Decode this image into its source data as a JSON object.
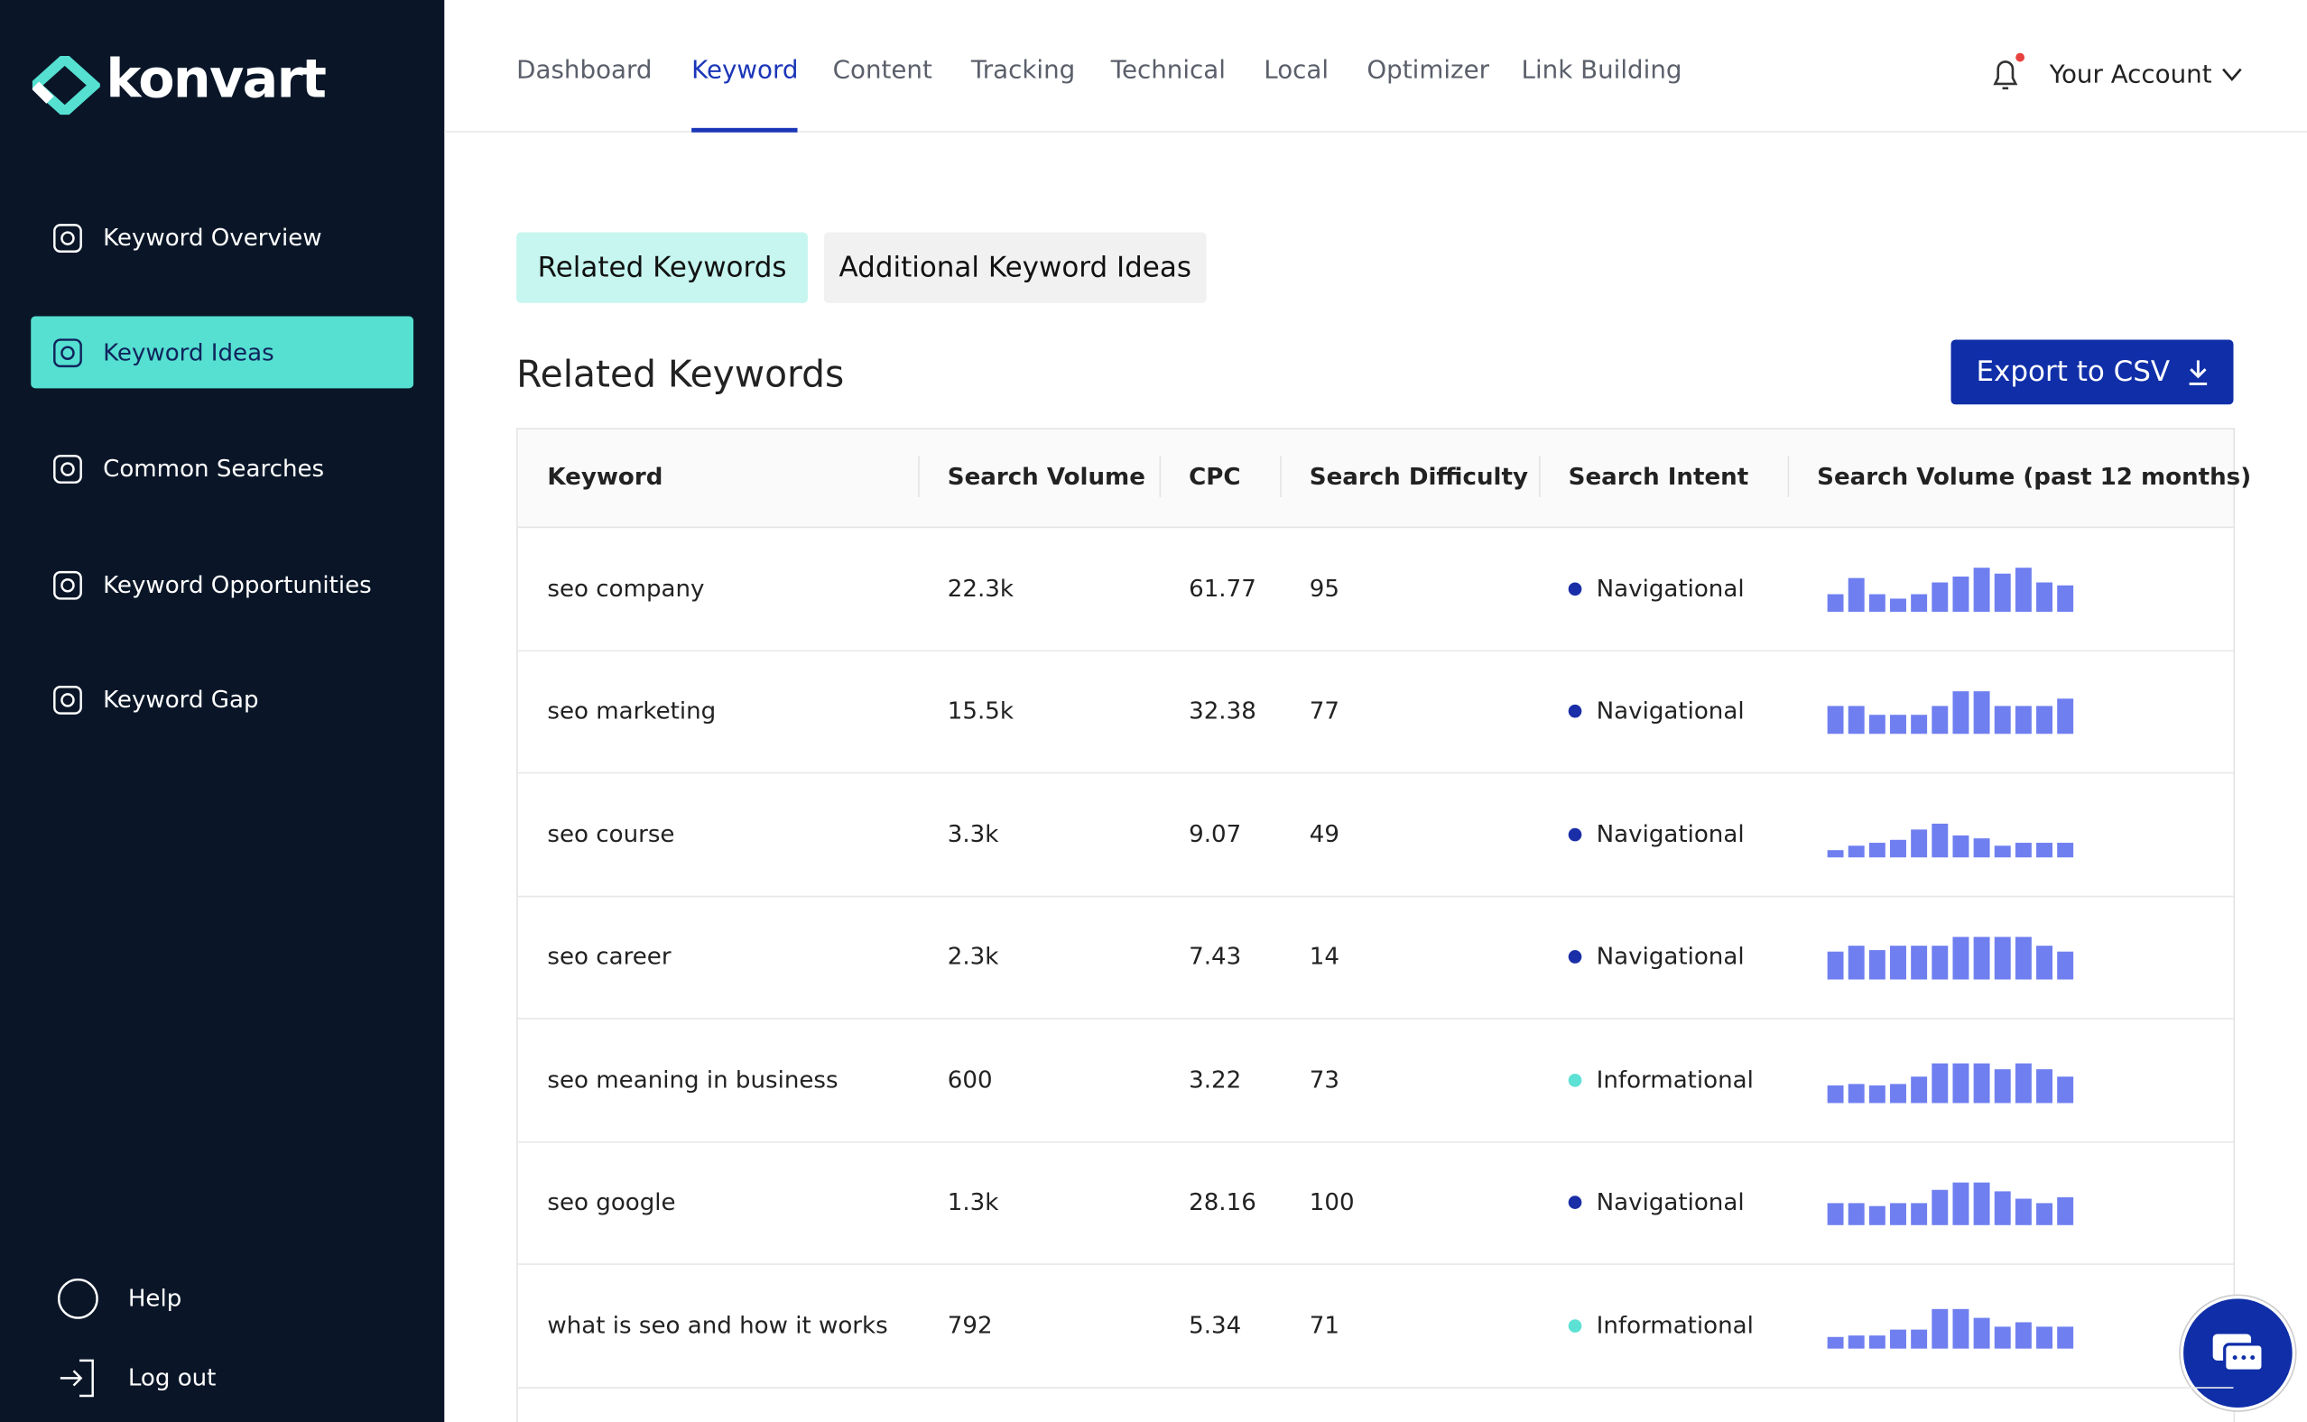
{
  "brand": "konvart",
  "nav": {
    "items": [
      "Dashboard",
      "Keyword",
      "Content",
      "Tracking",
      "Technical",
      "Local",
      "Optimizer",
      "Link Building"
    ],
    "active": 1
  },
  "account": "Your Account",
  "sidebar": {
    "items": [
      "Keyword Overview",
      "Keyword Ideas",
      "Common Searches",
      "Keyword Opportunities",
      "Keyword Gap"
    ],
    "active": 1,
    "footer": [
      "Help",
      "Log out"
    ]
  },
  "tabs": {
    "items": [
      "Related Keywords",
      "Additional Keyword Ideas"
    ],
    "active": 0
  },
  "heading": "Related Keywords",
  "export_button": "Export to CSV",
  "table": {
    "columns": [
      "Keyword",
      "Search Volume",
      "CPC",
      "Search Difficulty",
      "Search Intent",
      "Search Volume (past 12 months)"
    ],
    "rows": [
      {
        "keyword": "seo company",
        "volume": "22.3k",
        "cpc": "61.77",
        "difficulty": "95",
        "intent": "Navigational",
        "intent_color": "#1a2ea8",
        "trend": [
          12,
          23,
          12,
          9,
          12,
          20,
          24,
          30,
          26,
          30,
          20,
          18
        ]
      },
      {
        "keyword": "seo marketing",
        "volume": "15.5k",
        "cpc": "32.38",
        "difficulty": "77",
        "intent": "Navigational",
        "intent_color": "#1a2ea8",
        "trend": [
          19,
          19,
          13,
          13,
          13,
          19,
          29,
          29,
          19,
          19,
          19,
          24
        ]
      },
      {
        "keyword": "seo course",
        "volume": "3.3k",
        "cpc": "9.07",
        "difficulty": "49",
        "intent": "Navigational",
        "intent_color": "#1a2ea8",
        "trend": [
          5,
          8,
          10,
          12,
          19,
          23,
          15,
          13,
          8,
          10,
          10,
          10
        ]
      },
      {
        "keyword": "seo career",
        "volume": "2.3k",
        "cpc": "7.43",
        "difficulty": "14",
        "intent": "Navigational",
        "intent_color": "#1a2ea8",
        "trend": [
          19,
          23,
          20,
          23,
          23,
          23,
          29,
          29,
          29,
          29,
          23,
          19
        ]
      },
      {
        "keyword": "seo meaning in business",
        "volume": "600",
        "cpc": "3.22",
        "difficulty": "73",
        "intent": "Informational",
        "intent_color": "#5ce1d4",
        "trend": [
          12,
          13,
          12,
          13,
          18,
          27,
          27,
          27,
          23,
          27,
          23,
          18
        ]
      },
      {
        "keyword": "seo google",
        "volume": "1.3k",
        "cpc": "28.16",
        "difficulty": "100",
        "intent": "Navigational",
        "intent_color": "#1a2ea8",
        "trend": [
          15,
          15,
          13,
          15,
          15,
          24,
          29,
          29,
          23,
          18,
          15,
          19
        ]
      },
      {
        "keyword": "what is seo and how it works",
        "volume": "792",
        "cpc": "5.34",
        "difficulty": "71",
        "intent": "Informational",
        "intent_color": "#5ce1d4",
        "trend": [
          8,
          9,
          9,
          13,
          13,
          27,
          27,
          21,
          15,
          18,
          15,
          15
        ]
      }
    ],
    "trend_max": 30,
    "bar_color": "#6f7ff0"
  }
}
